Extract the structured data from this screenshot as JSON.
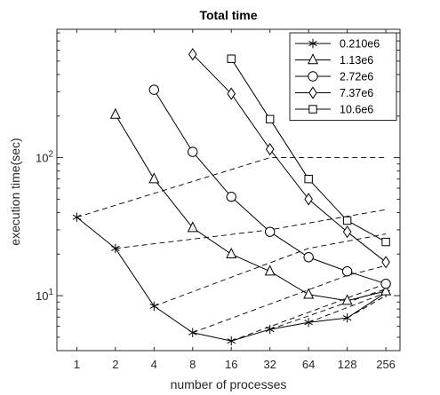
{
  "chart_data": {
    "type": "line",
    "title": "Total time",
    "xlabel": "number of processes",
    "ylabel": "execution time(sec)",
    "x_scale": "log2",
    "y_scale": "log10",
    "x_ticks": [
      1,
      2,
      4,
      8,
      16,
      32,
      64,
      128,
      256
    ],
    "x_tick_labels": [
      "1",
      "2",
      "4",
      "8",
      "16",
      "32",
      "64",
      "128",
      "256"
    ],
    "xlim": [
      0.7,
      330
    ],
    "ylim": [
      4,
      850
    ],
    "y_ticks": [
      10,
      100
    ],
    "y_tick_labels": [
      [
        "10",
        "1"
      ],
      [
        "10",
        "2"
      ]
    ],
    "grid": false,
    "legend_position": "top-right",
    "series": [
      {
        "name": "0.210e6",
        "marker": "asterisk",
        "x": [
          1,
          2,
          4,
          8,
          16,
          32,
          64,
          128,
          256
        ],
        "y": [
          37,
          22,
          8.4,
          5.4,
          4.7,
          5.7,
          6.4,
          6.9,
          10.5
        ]
      },
      {
        "name": "1.13e6",
        "marker": "triangle",
        "x": [
          2,
          4,
          8,
          16,
          32,
          64,
          128,
          256
        ],
        "y": [
          205,
          70,
          31,
          20,
          15,
          10.2,
          9.2,
          10.8
        ]
      },
      {
        "name": "2.72e6",
        "marker": "circle",
        "x": [
          4,
          8,
          16,
          32,
          64,
          128,
          256
        ],
        "y": [
          310,
          110,
          52,
          29,
          19,
          15,
          12.2
        ]
      },
      {
        "name": "7.37e6",
        "marker": "diamond",
        "x": [
          8,
          16,
          32,
          64,
          128,
          256
        ],
        "y": [
          560,
          290,
          115,
          50,
          29,
          17.5
        ]
      },
      {
        "name": "10.6e6",
        "marker": "square",
        "x": [
          16,
          32,
          64,
          128,
          256
        ],
        "y": [
          520,
          190,
          70,
          35,
          24.5
        ]
      }
    ],
    "dashed_lines": [
      {
        "x": [
          1,
          32,
          256
        ],
        "y": [
          37,
          100,
          100
        ]
      },
      {
        "x": [
          2,
          32,
          256
        ],
        "y": [
          22,
          30,
          42
        ]
      },
      {
        "x": [
          4,
          64,
          256
        ],
        "y": [
          8.4,
          22,
          28
        ]
      },
      {
        "x": [
          8,
          128,
          256
        ],
        "y": [
          5.4,
          14,
          16.5
        ]
      },
      {
        "x": [
          16,
          256
        ],
        "y": [
          4.7,
          12.2
        ]
      },
      {
        "x": [
          32,
          256
        ],
        "y": [
          5.7,
          11.2
        ]
      },
      {
        "x": [
          64,
          256
        ],
        "y": [
          6.4,
          10.5
        ]
      },
      {
        "x": [
          128,
          256
        ],
        "y": [
          6.9,
          10.0
        ]
      }
    ]
  }
}
